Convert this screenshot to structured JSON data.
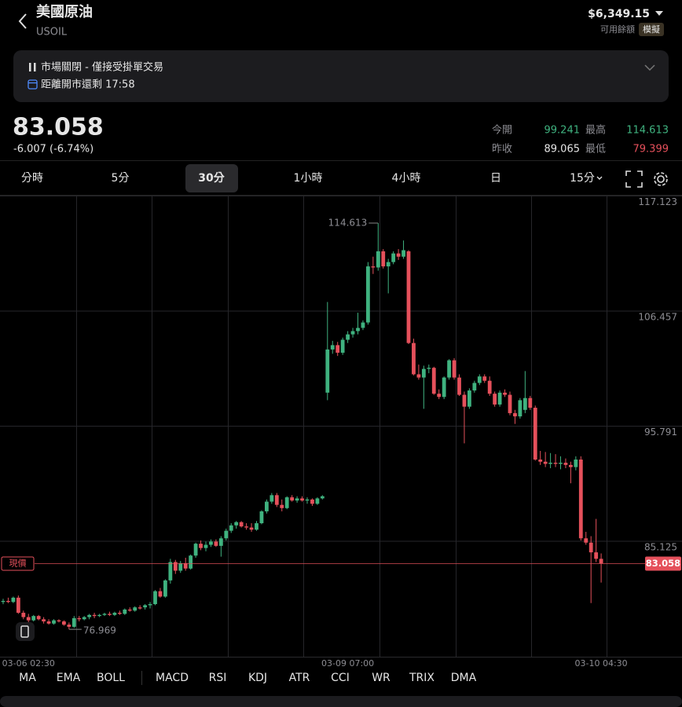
{
  "header": {
    "title": "美國原油",
    "symbol": "USOIL",
    "balance": "$6,349.15",
    "balance_label": "可用餘額",
    "mode": "模擬"
  },
  "banner": {
    "status": "市場關閉 - 僅接受掛單交易",
    "countdown": "距離開市還剩 17:58"
  },
  "quote": {
    "price": "83.058",
    "change": "-6.007 (-6.74%)",
    "stats": [
      {
        "label": "今開",
        "value": "99.241",
        "tone": "up"
      },
      {
        "label": "最高",
        "value": "114.613",
        "tone": "up"
      },
      {
        "label": "昨收",
        "value": "89.065",
        "tone": "flat"
      },
      {
        "label": "最低",
        "value": "79.399",
        "tone": "down"
      }
    ]
  },
  "tabs": [
    "分時",
    "5分",
    "30分",
    "1小時",
    "4小時",
    "日",
    "15分"
  ],
  "active_tab": "30分",
  "indicators": {
    "main": [
      "MA",
      "EMA",
      "BOLL"
    ],
    "sub": [
      "MACD",
      "RSI",
      "KDJ",
      "ATR",
      "CCI",
      "WR",
      "TRIX",
      "DMA"
    ]
  },
  "chart_data": {
    "type": "candlestick",
    "ylim": [
      74.5,
      117.123
    ],
    "yticks": [
      117.123,
      106.457,
      95.791,
      85.125
    ],
    "grid": true,
    "current_label": "現價",
    "categories": [
      null,
      null,
      null,
      null,
      null,
      "03-06 02:30",
      null,
      null,
      null,
      null,
      null,
      null,
      null,
      null,
      null,
      null,
      null,
      null,
      null,
      null,
      null,
      null,
      null,
      null,
      null,
      null,
      null,
      null,
      null,
      null,
      null,
      null,
      null,
      null,
      null,
      null,
      null,
      null,
      null,
      null,
      null,
      null,
      null,
      null,
      null,
      null,
      null,
      null,
      null,
      null,
      null,
      null,
      null,
      null,
      null,
      null,
      null,
      null,
      null,
      null,
      null,
      null,
      null,
      null,
      null,
      null,
      null,
      null,
      "03-09 07:00",
      null,
      null,
      null,
      null,
      null,
      null,
      null,
      null,
      null,
      null,
      null,
      null,
      null,
      null,
      null,
      null,
      null,
      null,
      null,
      null,
      null,
      null,
      null,
      null,
      null,
      null,
      null,
      null,
      null,
      null,
      null,
      null,
      null,
      null,
      null,
      null,
      null,
      null,
      null,
      null,
      null,
      null,
      null,
      null,
      null,
      null,
      null,
      null,
      null,
      "03-10 04:30"
    ],
    "series": [
      {
        "up_color": "#3fb27f",
        "down_color": "#e5505b",
        "open": [
          79.5,
          79.6,
          79.5,
          79.9,
          78.5,
          78.1,
          77.8,
          78.2,
          77.9,
          77.7,
          77.5,
          77.8,
          77.7,
          77.4,
          77.2,
          78.0,
          77.9,
          78.1,
          78.3,
          78.2,
          78.3,
          78.4,
          78.3,
          78.5,
          78.4,
          78.8,
          78.7,
          79.0,
          79.0,
          79.2,
          79.3,
          80.5,
          80.0,
          81.5,
          83.2,
          82.4,
          83.1,
          82.6,
          83.8,
          84.9,
          84.5,
          84.8,
          85.1,
          84.7,
          85.4,
          86.1,
          86.6,
          86.9,
          86.5,
          86.4,
          86.2,
          86.8,
          87.9,
          88.8,
          89.4,
          88.5,
          88.2,
          89.2,
          88.9,
          89.1,
          88.9,
          89.0,
          88.6,
          89.1,
          98.9,
          102.9,
          103.3,
          102.6,
          103.8,
          104.3,
          104.6,
          104.9,
          105.4,
          110.6,
          110.5,
          112.0,
          110.6,
          111.0,
          111.8,
          111.5,
          112.0,
          103.5,
          100.6,
          100.3,
          101.1,
          101.2,
          98.8,
          98.5,
          100.3,
          101.9,
          100.3,
          98.7,
          97.6,
          99.1,
          99.8,
          100.4,
          100.0,
          98.8,
          97.8,
          98.9,
          98.7,
          97.0,
          96.7,
          97.3,
          98.4,
          97.5,
          92.7,
          92.5,
          92.3,
          92.4,
          92.3,
          92.4,
          92.2,
          92.0,
          92.7,
          85.4,
          85.0,
          84.1,
          83.5
        ],
        "high": [
          79.8,
          79.9,
          80.0,
          80.1,
          78.7,
          78.4,
          78.3,
          78.3,
          78.1,
          77.9,
          77.9,
          77.9,
          77.8,
          77.6,
          78.2,
          78.2,
          78.2,
          78.4,
          78.5,
          78.4,
          78.5,
          78.6,
          78.6,
          78.7,
          78.9,
          79.0,
          79.1,
          79.2,
          79.3,
          79.5,
          80.6,
          80.8,
          81.6,
          83.5,
          83.4,
          83.3,
          83.6,
          83.9,
          85.0,
          85.2,
          85.1,
          85.3,
          85.3,
          85.6,
          86.3,
          86.8,
          87.0,
          87.0,
          86.8,
          86.8,
          87.0,
          88.0,
          89.0,
          89.6,
          89.6,
          89.0,
          89.3,
          89.4,
          89.3,
          89.3,
          89.2,
          89.1,
          89.2,
          89.4,
          107.3,
          103.7,
          103.6,
          104.0,
          104.6,
          104.9,
          106.3,
          105.6,
          111.0,
          111.5,
          114.613,
          112.2,
          111.3,
          112.0,
          112.2,
          113.0,
          112.1,
          103.9,
          101.5,
          101.4,
          101.5,
          101.3,
          99.2,
          100.4,
          102.0,
          102.1,
          100.6,
          99.0,
          99.3,
          100.0,
          100.6,
          100.6,
          100.4,
          99.0,
          99.1,
          99.2,
          99.0,
          97.3,
          98.4,
          100.9,
          98.6,
          97.7,
          93.5,
          93.4,
          93.3,
          93.2,
          93.0,
          92.8,
          92.5,
          93.0,
          93.0,
          86.0,
          85.6,
          87.2,
          84.0
        ],
        "low": [
          79.3,
          79.4,
          79.4,
          78.4,
          77.9,
          77.6,
          77.7,
          77.8,
          77.5,
          77.4,
          77.4,
          77.6,
          77.3,
          76.969,
          77.1,
          77.7,
          77.8,
          77.9,
          78.0,
          78.1,
          78.2,
          78.2,
          78.2,
          78.3,
          78.3,
          78.6,
          78.6,
          78.8,
          78.8,
          78.9,
          79.2,
          79.9,
          79.9,
          81.2,
          82.1,
          82.2,
          82.4,
          82.5,
          83.6,
          84.3,
          84.2,
          84.6,
          84.6,
          83.7,
          85.2,
          85.9,
          86.3,
          86.4,
          86.2,
          86.0,
          86.1,
          86.7,
          87.7,
          88.6,
          88.3,
          87.9,
          88.1,
          88.8,
          88.7,
          88.8,
          88.6,
          88.4,
          88.5,
          89.0,
          98.2,
          102.5,
          102.3,
          102.4,
          103.5,
          104.0,
          104.3,
          104.7,
          105.2,
          109.9,
          110.2,
          110.4,
          108.1,
          110.8,
          111.2,
          111.3,
          103.4,
          100.5,
          100.1,
          97.4,
          100.7,
          98.7,
          98.3,
          98.3,
          100.1,
          100.1,
          98.6,
          94.2,
          97.4,
          98.9,
          99.6,
          99.8,
          98.6,
          97.6,
          97.6,
          98.5,
          96.8,
          96.0,
          96.5,
          97.0,
          97.3,
          92.6,
          92.2,
          92.0,
          91.9,
          92.0,
          91.8,
          91.9,
          90.5,
          91.7,
          85.2,
          84.8,
          79.399,
          83.2,
          81.3
        ],
        "close": [
          79.6,
          79.5,
          79.9,
          78.5,
          78.1,
          77.8,
          78.2,
          77.9,
          77.7,
          77.5,
          77.8,
          77.7,
          77.4,
          77.2,
          78.0,
          77.9,
          78.1,
          78.3,
          78.2,
          78.3,
          78.4,
          78.3,
          78.5,
          78.4,
          78.8,
          78.7,
          79.0,
          78.9,
          79.2,
          79.3,
          80.5,
          80.0,
          81.5,
          83.2,
          82.4,
          83.1,
          82.6,
          83.8,
          84.9,
          84.5,
          84.8,
          85.1,
          84.7,
          85.4,
          86.1,
          86.6,
          86.9,
          86.5,
          86.4,
          86.2,
          86.8,
          87.9,
          88.8,
          89.4,
          88.5,
          88.2,
          89.2,
          88.9,
          89.1,
          88.9,
          89.0,
          88.6,
          89.1,
          89.3,
          102.9,
          103.3,
          102.6,
          103.8,
          104.3,
          104.6,
          104.9,
          105.4,
          110.6,
          110.5,
          112.0,
          110.6,
          111.0,
          111.8,
          111.5,
          112.1,
          103.5,
          100.6,
          100.3,
          101.1,
          101.2,
          98.8,
          98.5,
          100.3,
          101.9,
          100.3,
          98.7,
          97.6,
          99.1,
          99.8,
          100.4,
          100.0,
          98.8,
          97.8,
          98.9,
          98.7,
          97.0,
          96.7,
          98.2,
          98.4,
          97.5,
          92.7,
          92.5,
          92.3,
          92.4,
          92.3,
          92.4,
          92.2,
          92.0,
          92.7,
          85.4,
          85.0,
          84.1,
          83.5,
          83.058
        ]
      }
    ]
  }
}
